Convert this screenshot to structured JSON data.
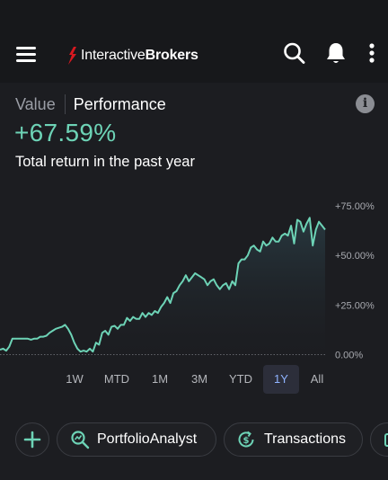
{
  "header": {
    "logo_light": "Interactive",
    "logo_bold": "Brokers"
  },
  "tabs": {
    "value_label": "Value",
    "performance_label": "Performance"
  },
  "summary": {
    "return_value": "+67.59%",
    "caption": "Total return in the past year"
  },
  "colors": {
    "accent_green": "#6dd3b6",
    "selected_range": "#8fb3ff",
    "background": "#1c1d21"
  },
  "chart_data": {
    "type": "area",
    "y_unit": "%",
    "ylim": [
      -2.5,
      80
    ],
    "y_ticks": [
      "+75.00%",
      "+50.00%",
      "+25.00%",
      "0.00%"
    ],
    "y_tick_values": [
      75,
      50,
      25,
      0
    ],
    "x_label": "",
    "y_label": "",
    "grid": false,
    "baseline": 0,
    "values": [
      2.5,
      3,
      2,
      4,
      8,
      8,
      8,
      8,
      8,
      8,
      7.5,
      8,
      8,
      9,
      9,
      9.5,
      11,
      12,
      13,
      13.5,
      14,
      15,
      13,
      10,
      6,
      3,
      1.5,
      2,
      1.5,
      3,
      1.5,
      6,
      5,
      11,
      12,
      10,
      14,
      14.5,
      13,
      15,
      15,
      18.5,
      17,
      19,
      18,
      18,
      21,
      19,
      21,
      20,
      22,
      21,
      24,
      26,
      29,
      26,
      31,
      32,
      35,
      37,
      40,
      37,
      39,
      41,
      40,
      39,
      38,
      35,
      37,
      38,
      35,
      33,
      35,
      36,
      33,
      37,
      35,
      46,
      48,
      48,
      50,
      54,
      55,
      53,
      52,
      57,
      55,
      56,
      59,
      57,
      57,
      60,
      61,
      60,
      65,
      56,
      68,
      67,
      62,
      66,
      69,
      55,
      63,
      67,
      65,
      63
    ]
  },
  "ranges": [
    "1W",
    "MTD",
    "1M",
    "3M",
    "YTD",
    "1Y",
    "All"
  ],
  "selected_range": "1Y",
  "actions": {
    "portfolio_label": "PortfolioAnalyst",
    "transactions_label": "Transactions"
  }
}
